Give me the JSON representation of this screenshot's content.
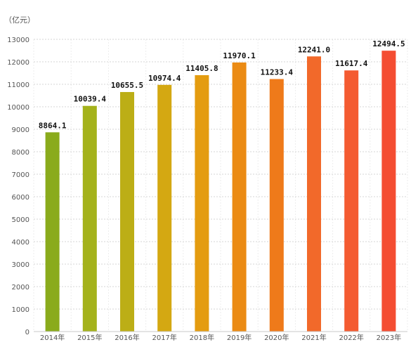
{
  "chart_data": {
    "type": "bar",
    "ylabel": "（亿元）",
    "ylim": [
      0,
      13000
    ],
    "ytick_step": 1000,
    "grid": true,
    "categories": [
      "2014年",
      "2015年",
      "2016年",
      "2017年",
      "2018年",
      "2019年",
      "2020年",
      "2021年",
      "2022年",
      "2023年"
    ],
    "values": [
      8864.1,
      10039.4,
      10655.5,
      10974.4,
      11405.8,
      11970.1,
      11233.4,
      12241.0,
      11617.4,
      12494.5
    ],
    "value_labels": [
      "8864.1",
      "10039.4",
      "10655.5",
      "10974.4",
      "11405.8",
      "11970.1",
      "11233.4",
      "12241.0",
      "11617.4",
      "12494.5"
    ],
    "colors": [
      "#8aab1c",
      "#a4b21b",
      "#bcae16",
      "#d4a812",
      "#e49c10",
      "#eb8b14",
      "#ef7a1a",
      "#f2692a",
      "#f45b31",
      "#f44d32"
    ]
  }
}
